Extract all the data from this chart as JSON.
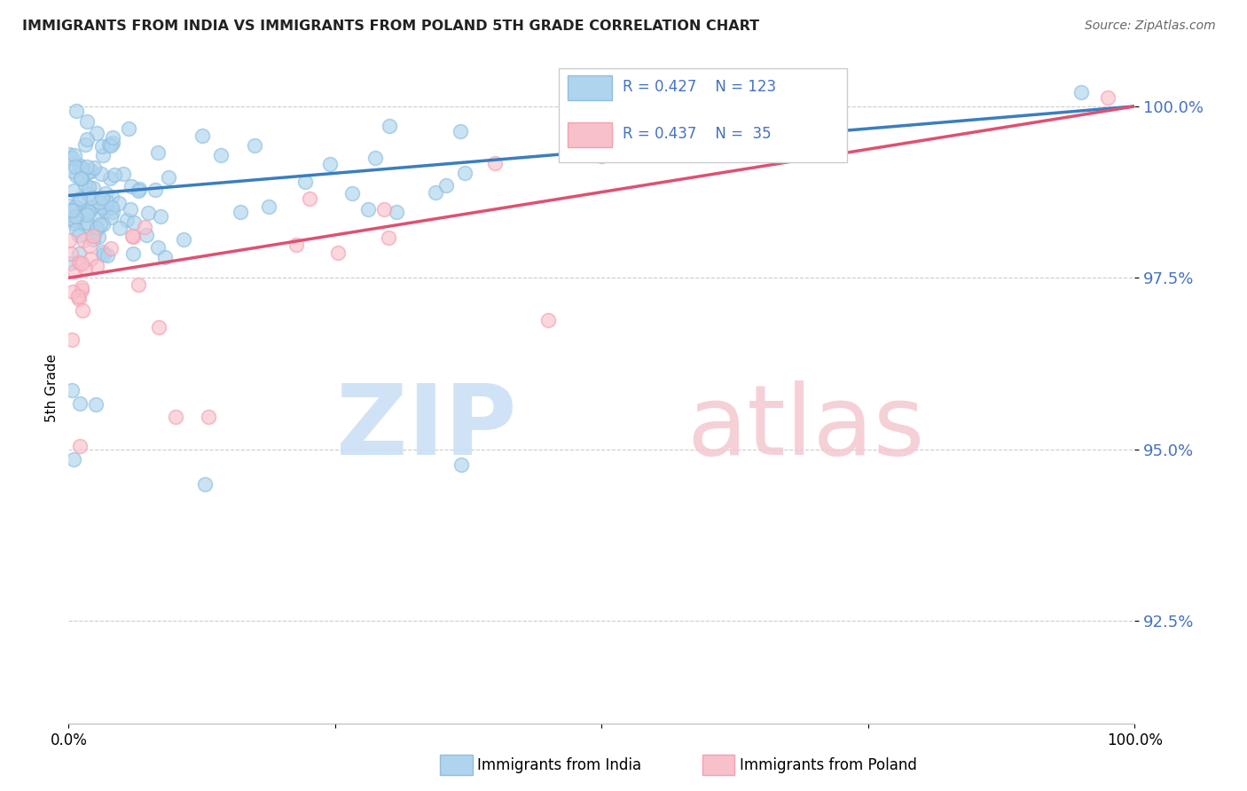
{
  "title": "IMMIGRANTS FROM INDIA VS IMMIGRANTS FROM POLAND 5TH GRADE CORRELATION CHART",
  "source": "Source: ZipAtlas.com",
  "ylabel": "5th Grade",
  "ytick_labels": [
    "92.5%",
    "95.0%",
    "97.5%",
    "100.0%"
  ],
  "ytick_values": [
    92.5,
    95.0,
    97.5,
    100.0
  ],
  "ymin": 91.0,
  "ymax": 100.8,
  "legend_india": "Immigrants from India",
  "legend_poland": "Immigrants from Poland",
  "R_india": 0.427,
  "N_india": 123,
  "R_poland": 0.437,
  "N_poland": 35,
  "india_color": "#8fbfe0",
  "poland_color": "#f5a0b0",
  "india_fill": "#aed4ee",
  "poland_fill": "#f8c0cb",
  "india_line_color": "#3a7ebf",
  "poland_line_color": "#e05070",
  "background_color": "#ffffff",
  "grid_color": "#cccccc",
  "title_color": "#222222",
  "source_color": "#666666",
  "ytick_color": "#4472c4",
  "watermark_zip_color": "#c8dff5",
  "watermark_atlas_color": "#f5c8d0"
}
